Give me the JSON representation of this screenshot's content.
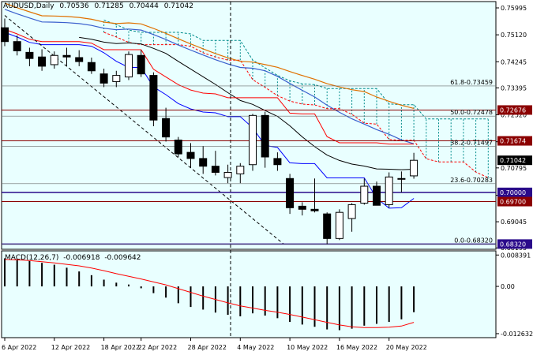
{
  "header": {
    "symbol": "AUDUSD,Daily",
    "open": "0.70536",
    "high": "0.71285",
    "low": "0.70444",
    "close": "0.71042"
  },
  "macd_header": {
    "label": "MACD(12,26,7)",
    "main": "-0.006918",
    "signal": "-0.009642"
  },
  "chart_data": {
    "type": "candlestick",
    "symbol": "AUDUSD",
    "timeframe": "Daily",
    "price_range": [
      0.6815,
      0.762
    ],
    "candles": [
      {
        "o": 0.7535,
        "h": 0.7565,
        "l": 0.7475,
        "c": 0.749
      },
      {
        "o": 0.749,
        "h": 0.751,
        "l": 0.7445,
        "c": 0.746
      },
      {
        "o": 0.7455,
        "h": 0.747,
        "l": 0.741,
        "c": 0.7435
      },
      {
        "o": 0.744,
        "h": 0.7465,
        "l": 0.7395,
        "c": 0.741
      },
      {
        "o": 0.7415,
        "h": 0.7458,
        "l": 0.7402,
        "c": 0.7445
      },
      {
        "o": 0.7445,
        "h": 0.747,
        "l": 0.741,
        "c": 0.744
      },
      {
        "o": 0.7438,
        "h": 0.7462,
        "l": 0.741,
        "c": 0.7425
      },
      {
        "o": 0.7422,
        "h": 0.7438,
        "l": 0.7385,
        "c": 0.7395
      },
      {
        "o": 0.7385,
        "h": 0.7402,
        "l": 0.7342,
        "c": 0.7355
      },
      {
        "o": 0.736,
        "h": 0.7395,
        "l": 0.7342,
        "c": 0.738
      },
      {
        "o": 0.7375,
        "h": 0.7458,
        "l": 0.7365,
        "c": 0.7448
      },
      {
        "o": 0.7445,
        "h": 0.7462,
        "l": 0.7375,
        "c": 0.7385
      },
      {
        "o": 0.738,
        "h": 0.739,
        "l": 0.7215,
        "c": 0.7235
      },
      {
        "o": 0.724,
        "h": 0.7275,
        "l": 0.7165,
        "c": 0.718
      },
      {
        "o": 0.717,
        "h": 0.718,
        "l": 0.7115,
        "c": 0.7125
      },
      {
        "o": 0.713,
        "h": 0.716,
        "l": 0.708,
        "c": 0.711
      },
      {
        "o": 0.711,
        "h": 0.715,
        "l": 0.706,
        "c": 0.7085
      },
      {
        "o": 0.7085,
        "h": 0.7135,
        "l": 0.7055,
        "c": 0.7065
      },
      {
        "o": 0.7048,
        "h": 0.709,
        "l": 0.703,
        "c": 0.7065
      },
      {
        "o": 0.706,
        "h": 0.7095,
        "l": 0.703,
        "c": 0.7085
      },
      {
        "o": 0.709,
        "h": 0.7255,
        "l": 0.707,
        "c": 0.725
      },
      {
        "o": 0.725,
        "h": 0.7262,
        "l": 0.708,
        "c": 0.7115
      },
      {
        "o": 0.711,
        "h": 0.713,
        "l": 0.707,
        "c": 0.709
      },
      {
        "o": 0.7045,
        "h": 0.706,
        "l": 0.693,
        "c": 0.695
      },
      {
        "o": 0.6955,
        "h": 0.6968,
        "l": 0.6925,
        "c": 0.6945
      },
      {
        "o": 0.6945,
        "h": 0.7045,
        "l": 0.6935,
        "c": 0.694
      },
      {
        "o": 0.693,
        "h": 0.6935,
        "l": 0.6832,
        "c": 0.685
      },
      {
        "o": 0.685,
        "h": 0.6945,
        "l": 0.6845,
        "c": 0.6935
      },
      {
        "o": 0.6915,
        "h": 0.6965,
        "l": 0.6872,
        "c": 0.696
      },
      {
        "o": 0.6965,
        "h": 0.7045,
        "l": 0.696,
        "c": 0.702
      },
      {
        "o": 0.702,
        "h": 0.7035,
        "l": 0.6958,
        "c": 0.6958
      },
      {
        "o": 0.696,
        "h": 0.7065,
        "l": 0.695,
        "c": 0.705
      },
      {
        "o": 0.7045,
        "h": 0.7068,
        "l": 0.7,
        "c": 0.7045
      },
      {
        "o": 0.70536,
        "h": 0.71285,
        "l": 0.70444,
        "c": 0.71042
      }
    ],
    "x_labels": [
      "6 Apr 2022",
      "12 Apr 2022",
      "18 Apr 2022",
      "22 Apr 2022",
      "28 Apr 2022",
      "4 May 2022",
      "10 May 2022",
      "16 May 2022",
      "20 May 2022"
    ],
    "y_ticks": [
      "0.75995",
      "0.75120",
      "0.74245",
      "0.73395",
      "0.72520",
      "0.71645",
      "0.70795",
      "0.69905",
      "0.69045",
      "0.68195"
    ],
    "price_markers": [
      {
        "value": "0.72676",
        "price": 0.72676,
        "bg": "#8b0000",
        "fg": "#ffffff"
      },
      {
        "value": "0.71674",
        "price": 0.71674,
        "bg": "#8b0000",
        "fg": "#ffffff"
      },
      {
        "value": "0.71042",
        "price": 0.71042,
        "bg": "#000000",
        "fg": "#ffffff"
      },
      {
        "value": "0.70000",
        "price": 0.7,
        "bg": "#2a0a8a",
        "fg": "#ffffff"
      },
      {
        "value": "0.69700",
        "price": 0.697,
        "bg": "#8b0000",
        "fg": "#ffffff"
      },
      {
        "value": "0.68320",
        "price": 0.6832,
        "bg": "#2a0a8a",
        "fg": "#ffffff"
      }
    ],
    "horizontal_lines": [
      {
        "price": 0.72676,
        "color": "#8b0000"
      },
      {
        "price": 0.71674,
        "color": "#8b0000"
      },
      {
        "price": 0.7,
        "color": "#2a0a8a"
      },
      {
        "price": 0.697,
        "color": "#8b0000"
      },
      {
        "price": 0.6832,
        "color": "#2a0a8a"
      }
    ],
    "fibonacci": [
      {
        "text": "61.8-0.73459",
        "price": 0.73459
      },
      {
        "text": "50.0-0.72478",
        "price": 0.72478
      },
      {
        "text": "38.2-0.71497",
        "price": 0.71497
      },
      {
        "text": "23.6-0.70283",
        "price": 0.70283
      },
      {
        "text": "0.0-0.68320",
        "price": 0.6832
      }
    ],
    "macd": {
      "y_ticks": [
        "0.008391",
        "0.00",
        "-0.012632"
      ],
      "range": [
        -0.0137,
        0.0095
      ],
      "histogram": [
        0.0075,
        0.0073,
        0.0068,
        0.0063,
        0.0058,
        0.005,
        0.004,
        0.003,
        0.0018,
        0.001,
        0.0005,
        -0.0005,
        -0.0018,
        -0.003,
        -0.0045,
        -0.0055,
        -0.0062,
        -0.007,
        -0.0076,
        -0.008,
        -0.0072,
        -0.0078,
        -0.0085,
        -0.0095,
        -0.0102,
        -0.0108,
        -0.0115,
        -0.0117,
        -0.0113,
        -0.0105,
        -0.01,
        -0.0095,
        -0.0088,
        -0.0069
      ],
      "signal": [
        0.0072,
        0.0071,
        0.0069,
        0.0066,
        0.0063,
        0.0059,
        0.0055,
        0.0049,
        0.0042,
        0.0034,
        0.0027,
        0.002,
        0.0012,
        0.0004,
        -0.0006,
        -0.0016,
        -0.0026,
        -0.0035,
        -0.0044,
        -0.0052,
        -0.0058,
        -0.0064,
        -0.0069,
        -0.0075,
        -0.0082,
        -0.0089,
        -0.0096,
        -0.0103,
        -0.0108,
        -0.011,
        -0.011,
        -0.0109,
        -0.0106,
        -0.0096
      ]
    },
    "colors": {
      "background": "#ffffff",
      "plot_background": "#e9ffff",
      "bull_body": "#ffffff",
      "bear_body": "#000000",
      "kijun": "#ff0000",
      "tenkan": "#0000ff",
      "cloud_line": "#008b8b",
      "ma_black": "#000000",
      "ma_orange": "#e07000",
      "ma_blue": "#3a5fcd",
      "macd_signal": "#ff0000"
    }
  }
}
